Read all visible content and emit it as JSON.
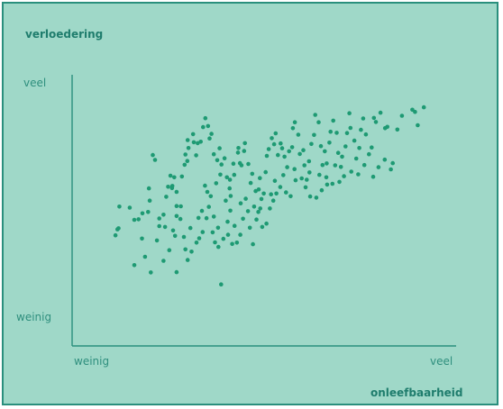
{
  "chart_data": {
    "type": "scatter",
    "title": "",
    "ylabel": "verloedering",
    "xlabel": "onleefbaarheid",
    "y_tick_labels": {
      "low": "weinig",
      "high": "veel"
    },
    "x_tick_labels": {
      "low": "weinig",
      "high": "veel"
    },
    "xlim": [
      0,
      100
    ],
    "ylim": [
      0,
      100
    ],
    "grid": false,
    "colors": {
      "points": "#1e9a73",
      "axis": "#2a8f7d",
      "background": "#9fd8c8"
    },
    "points": [
      [
        12.1,
        43.4
      ],
      [
        11.8,
        43.0
      ],
      [
        11.3,
        40.8
      ],
      [
        12.3,
        51.4
      ],
      [
        15.0,
        51.0
      ],
      [
        16.2,
        46.5
      ],
      [
        17.3,
        46.7
      ],
      [
        18.3,
        48.9
      ],
      [
        19.8,
        49.4
      ],
      [
        20.2,
        53.6
      ],
      [
        20.0,
        58.1
      ],
      [
        21.0,
        70.4
      ],
      [
        21.6,
        68.6
      ],
      [
        22.7,
        47.0
      ],
      [
        22.7,
        44.2
      ],
      [
        24.2,
        43.9
      ],
      [
        23.8,
        48.4
      ],
      [
        24.5,
        55.0
      ],
      [
        25.0,
        58.7
      ],
      [
        25.6,
        62.8
      ],
      [
        26.1,
        59.0
      ],
      [
        26.6,
        62.2
      ],
      [
        26.0,
        58.2
      ],
      [
        27.2,
        56.8
      ],
      [
        27.2,
        51.6
      ],
      [
        27.2,
        47.9
      ],
      [
        28.2,
        46.8
      ],
      [
        28.3,
        51.5
      ],
      [
        28.6,
        62.5
      ],
      [
        29.3,
        66.8
      ],
      [
        30.0,
        68.2
      ],
      [
        29.5,
        70.6
      ],
      [
        30.3,
        73.0
      ],
      [
        30.1,
        75.9
      ],
      [
        31.5,
        78.1
      ],
      [
        31.7,
        75.1
      ],
      [
        32.3,
        70.3
      ],
      [
        32.7,
        74.8
      ],
      [
        33.5,
        75.3
      ],
      [
        34.1,
        80.7
      ],
      [
        34.7,
        84.0
      ],
      [
        35.4,
        81.1
      ],
      [
        35.8,
        76.5
      ],
      [
        36.3,
        78.2
      ],
      [
        36.9,
        70.7
      ],
      [
        37.8,
        68.5
      ],
      [
        38.4,
        72.9
      ],
      [
        38.9,
        66.9
      ],
      [
        39.7,
        69.2
      ],
      [
        40.3,
        62.2
      ],
      [
        41.0,
        58.1
      ],
      [
        41.3,
        55.3
      ],
      [
        41.1,
        61.3
      ],
      [
        42.2,
        63.1
      ],
      [
        42.0,
        67.2
      ],
      [
        43.2,
        71.3
      ],
      [
        43.3,
        73.0
      ],
      [
        43.7,
        67.4
      ],
      [
        44.1,
        66.6
      ],
      [
        44.8,
        71.9
      ],
      [
        45.0,
        74.8
      ],
      [
        45.9,
        67.1
      ],
      [
        46.5,
        60.1
      ],
      [
        46.9,
        63.5
      ],
      [
        47.8,
        57.1
      ],
      [
        48.6,
        57.7
      ],
      [
        48.9,
        61.9
      ],
      [
        49.3,
        54.2
      ],
      [
        49.9,
        56.2
      ],
      [
        50.4,
        64.1
      ],
      [
        50.7,
        70.1
      ],
      [
        51.2,
        72.6
      ],
      [
        52.0,
        76.6
      ],
      [
        52.6,
        74.4
      ],
      [
        53.0,
        78.4
      ],
      [
        53.6,
        70.4
      ],
      [
        54.3,
        74.7
      ],
      [
        54.7,
        72.9
      ],
      [
        55.3,
        69.8
      ],
      [
        56.0,
        65.9
      ],
      [
        56.5,
        71.8
      ],
      [
        57.3,
        73.3
      ],
      [
        57.5,
        80.3
      ],
      [
        58.0,
        82.5
      ],
      [
        58.9,
        77.9
      ],
      [
        59.3,
        70.8
      ],
      [
        60.2,
        72.2
      ],
      [
        60.5,
        66.6
      ],
      [
        61.1,
        61.3
      ],
      [
        61.7,
        68.1
      ],
      [
        62.3,
        74.5
      ],
      [
        63.0,
        77.8
      ],
      [
        63.3,
        85.2
      ],
      [
        64.2,
        82.5
      ],
      [
        64.8,
        73.7
      ],
      [
        65.2,
        66.7
      ],
      [
        65.8,
        71.8
      ],
      [
        66.3,
        67.3
      ],
      [
        67.0,
        75.0
      ],
      [
        67.3,
        79.0
      ],
      [
        68.0,
        83.1
      ],
      [
        68.9,
        78.6
      ],
      [
        69.3,
        71.2
      ],
      [
        70.3,
        69.8
      ],
      [
        71.2,
        73.6
      ],
      [
        71.6,
        78.5
      ],
      [
        72.2,
        85.8
      ],
      [
        72.5,
        80.4
      ],
      [
        73.5,
        75.7
      ],
      [
        74.0,
        69.1
      ],
      [
        74.8,
        73.0
      ],
      [
        75.2,
        79.7
      ],
      [
        75.8,
        83.9
      ],
      [
        76.5,
        78.0
      ],
      [
        77.3,
        70.7
      ],
      [
        78.0,
        73.2
      ],
      [
        78.6,
        84.1
      ],
      [
        79.1,
        82.6
      ],
      [
        80.3,
        86.0
      ],
      [
        81.5,
        80.3
      ],
      [
        82.1,
        80.8
      ],
      [
        83.0,
        65.1
      ],
      [
        83.5,
        67.4
      ],
      [
        84.7,
        79.8
      ],
      [
        85.9,
        84.9
      ],
      [
        88.6,
        87.1
      ],
      [
        89.3,
        86.3
      ],
      [
        90.0,
        81.4
      ],
      [
        91.6,
        88.0
      ],
      [
        18.2,
        39.6
      ],
      [
        19.0,
        32.9
      ],
      [
        16.2,
        29.8
      ],
      [
        20.5,
        27.1
      ],
      [
        22.1,
        38.9
      ],
      [
        23.8,
        31.4
      ],
      [
        25.3,
        35.3
      ],
      [
        26.3,
        42.6
      ],
      [
        27.2,
        27.2
      ],
      [
        29.5,
        35.6
      ],
      [
        30.1,
        31.7
      ],
      [
        31.1,
        34.8
      ],
      [
        32.4,
        38.1
      ],
      [
        33.1,
        39.7
      ],
      [
        34.0,
        42.0
      ],
      [
        35.0,
        47.1
      ],
      [
        36.6,
        41.9
      ],
      [
        37.2,
        38.2
      ],
      [
        38.1,
        36.5
      ],
      [
        38.8,
        22.7
      ],
      [
        39.4,
        39.5
      ],
      [
        40.5,
        45.8
      ],
      [
        41.2,
        49.9
      ],
      [
        42.3,
        44.3
      ],
      [
        42.9,
        38.1
      ],
      [
        43.8,
        41.0
      ],
      [
        44.5,
        46.9
      ],
      [
        45.8,
        49.7
      ],
      [
        46.3,
        43.6
      ],
      [
        47.1,
        37.5
      ],
      [
        48.0,
        46.6
      ],
      [
        48.5,
        49.4
      ],
      [
        49.5,
        43.9
      ],
      [
        50.6,
        45.1
      ],
      [
        51.5,
        50.7
      ],
      [
        52.4,
        53.6
      ],
      [
        53.2,
        56.2
      ],
      [
        54.2,
        58.6
      ],
      [
        55.7,
        56.6
      ],
      [
        56.9,
        55.2
      ],
      [
        58.2,
        61.1
      ],
      [
        59.8,
        61.8
      ],
      [
        60.8,
        58.5
      ],
      [
        62.0,
        55.1
      ],
      [
        63.6,
        54.7
      ],
      [
        65.0,
        57.4
      ],
      [
        66.4,
        59.5
      ],
      [
        67.8,
        59.8
      ],
      [
        69.6,
        60.5
      ],
      [
        70.8,
        62.6
      ],
      [
        72.7,
        64.3
      ],
      [
        74.5,
        63.3
      ],
      [
        76.1,
        66.7
      ],
      [
        78.4,
        62.4
      ],
      [
        79.8,
        65.9
      ],
      [
        81.4,
        68.7
      ],
      [
        36.1,
        55.2
      ],
      [
        35.2,
        56.8
      ],
      [
        34.6,
        59.1
      ],
      [
        37.5,
        60.0
      ],
      [
        38.6,
        63.2
      ],
      [
        40.0,
        53.6
      ],
      [
        43.9,
        52.6
      ],
      [
        45.2,
        54.3
      ],
      [
        47.4,
        51.4
      ],
      [
        49.0,
        50.7
      ],
      [
        51.8,
        55.9
      ],
      [
        52.8,
        60.9
      ],
      [
        55.0,
        63.0
      ],
      [
        57.9,
        65.2
      ],
      [
        61.8,
        64.0
      ],
      [
        64.4,
        63.1
      ],
      [
        66.2,
        62.2
      ],
      [
        68.5,
        66.6
      ],
      [
        70.0,
        66.0
      ],
      [
        41.7,
        37.6
      ],
      [
        40.6,
        41.0
      ],
      [
        38.0,
        43.6
      ],
      [
        36.9,
        47.7
      ],
      [
        35.6,
        51.3
      ],
      [
        33.8,
        49.8
      ],
      [
        32.9,
        47.2
      ],
      [
        30.8,
        43.5
      ],
      [
        29.1,
        40.2
      ],
      [
        26.8,
        40.6
      ]
    ]
  }
}
